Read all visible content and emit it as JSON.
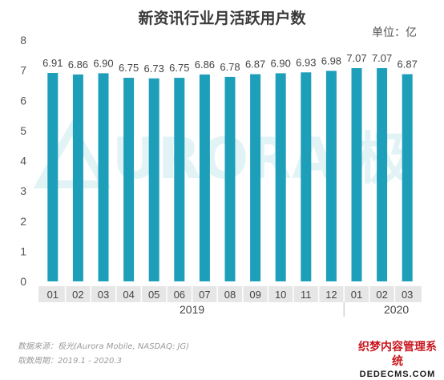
{
  "title": "新资讯行业月活跃用户数",
  "unit_label": "单位：亿",
  "chart_data": {
    "type": "bar",
    "title": "新资讯行业月活跃用户数",
    "unit": "亿",
    "categories": [
      "01",
      "02",
      "03",
      "04",
      "05",
      "06",
      "07",
      "08",
      "09",
      "10",
      "11",
      "12",
      "01",
      "02",
      "03"
    ],
    "year_groups": [
      {
        "label": "2019",
        "count": 12
      },
      {
        "label": "2020",
        "count": 3
      }
    ],
    "values": [
      6.91,
      6.86,
      6.9,
      6.75,
      6.73,
      6.75,
      6.86,
      6.78,
      6.87,
      6.9,
      6.93,
      6.98,
      7.07,
      7.07,
      6.87
    ],
    "value_labels": [
      "6.91",
      "6.86",
      "6.90",
      "6.75",
      "6.73",
      "6.75",
      "6.86",
      "6.78",
      "6.87",
      "6.90",
      "6.93",
      "6.98",
      "7.07",
      "7.07",
      "6.87"
    ],
    "ylim": [
      0,
      8
    ],
    "yticks": [
      0,
      1,
      2,
      3,
      4,
      5,
      6,
      7,
      8
    ],
    "grid": false,
    "bar_color": "#1d9fb9"
  },
  "watermark": {
    "text": "URORA 极光"
  },
  "source": {
    "data_source": "数据来源：极光(Aurora Mobile, NASDAQ: JG)",
    "period": "取数周期：2019.1 - 2020.3"
  },
  "site_logo": {
    "cn": "织梦内容管理系统",
    "en": "DEDECMS.COM"
  }
}
